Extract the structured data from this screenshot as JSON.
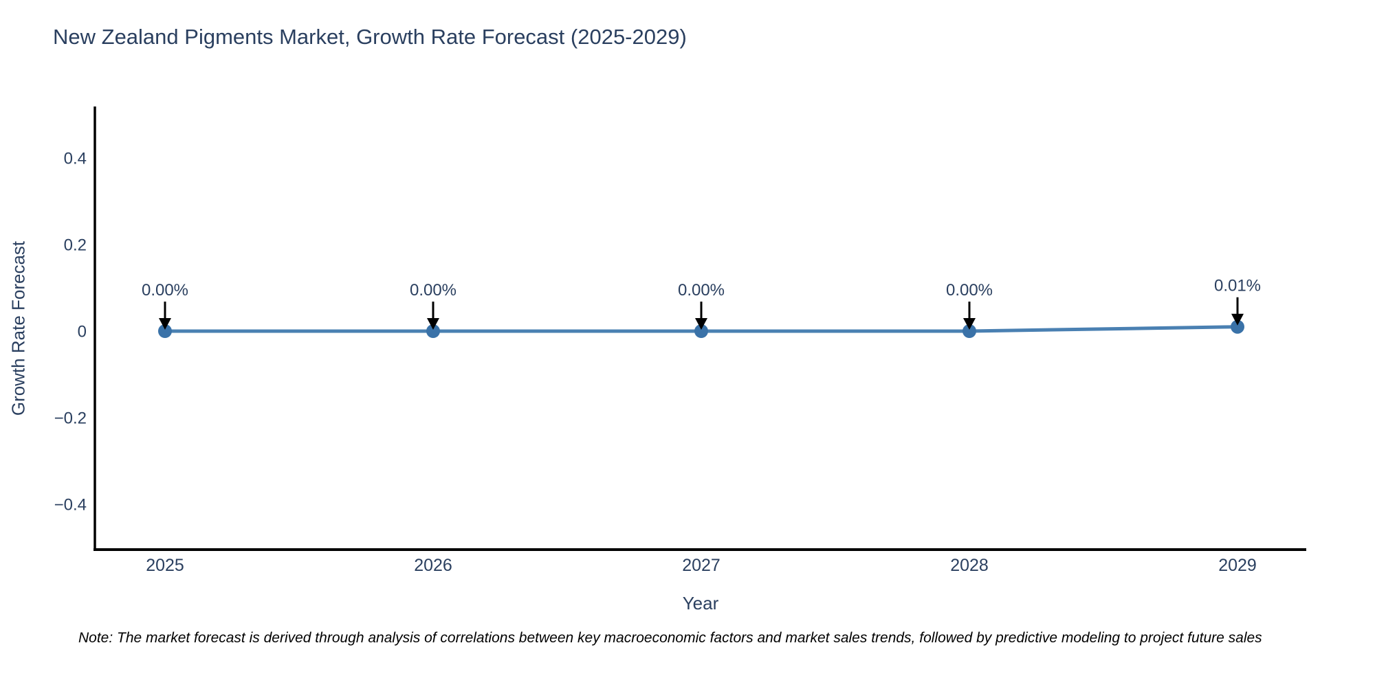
{
  "title": "New Zealand Pigments Market, Growth Rate Forecast (2025-2029)",
  "note": "Note: The market forecast is derived through analysis of correlations between key macroeconomic factors and market sales trends, followed by predictive modeling to project future sales",
  "colors": {
    "title_text": "#2a3f5f",
    "tick_text": "#2a3f5f",
    "axis_line": "#000000",
    "series_line": "#4a80b2",
    "marker_fill": "#3a72a8",
    "annotation_text": "#2a3f5f",
    "arrow": "#000000",
    "note_text": "#000000",
    "background": "#ffffff"
  },
  "chart_data": {
    "type": "line",
    "title": "New Zealand Pigments Market, Growth Rate Forecast (2025-2029)",
    "xlabel": "Year",
    "ylabel": "Growth Rate Forecast",
    "x": [
      2025,
      2026,
      2027,
      2028,
      2029
    ],
    "values": [
      0.0,
      0.0,
      0.0,
      0.0,
      0.01
    ],
    "point_labels": [
      "0.00%",
      "0.00%",
      "0.00%",
      "0.00%",
      "0.01%"
    ],
    "xtick_labels": [
      "2025",
      "2026",
      "2027",
      "2028",
      "2029"
    ],
    "ytick_values": [
      0.4,
      0.2,
      0,
      -0.2,
      -0.4
    ],
    "ytick_labels": [
      "0.4",
      "0.2",
      "0",
      "−0.2",
      "−0.4"
    ],
    "ylim": [
      -0.51,
      0.51
    ],
    "grid": false,
    "legend_position": "none",
    "annotation_style": "down-arrow"
  }
}
